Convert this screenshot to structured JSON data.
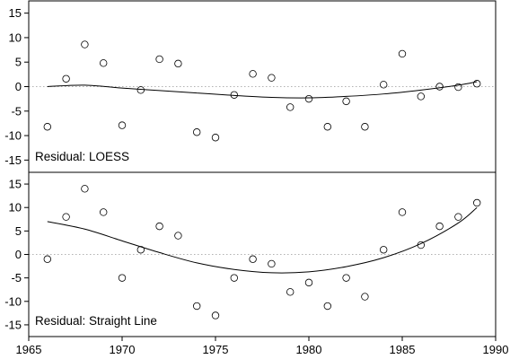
{
  "chart_data": [
    {
      "type": "scatter",
      "label": "Residual: LOESS",
      "xlim": [
        1965,
        1990
      ],
      "ylim": [
        -17.5,
        17.5
      ],
      "yticks": [
        -15,
        -10,
        -5,
        0,
        5,
        10,
        15
      ],
      "zero_line": true,
      "points": {
        "x": [
          1966,
          1967,
          1968,
          1969,
          1970,
          1971,
          1972,
          1973,
          1974,
          1975,
          1976,
          1977,
          1978,
          1979,
          1980,
          1981,
          1982,
          1983,
          1984,
          1985,
          1986,
          1987,
          1988,
          1989
        ],
        "y": [
          -8.2,
          1.6,
          8.6,
          4.8,
          -7.9,
          -0.7,
          5.6,
          4.7,
          -9.3,
          -10.4,
          -1.7,
          2.6,
          1.8,
          -4.2,
          -2.5,
          -8.2,
          -3.0,
          -8.2,
          0.4,
          6.7,
          -2.0,
          0.0,
          -0.1,
          0.6
        ]
      },
      "fit": {
        "x": [
          1966,
          1968,
          1970,
          1972,
          1974,
          1976,
          1978,
          1980,
          1982,
          1984,
          1986,
          1988,
          1989
        ],
        "y": [
          0.0,
          0.3,
          -0.3,
          -0.8,
          -1.3,
          -1.8,
          -2.2,
          -2.3,
          -2.0,
          -1.5,
          -0.7,
          0.3,
          1.0
        ]
      }
    },
    {
      "type": "scatter",
      "label": "Residual: Straight Line",
      "xlim": [
        1965,
        1990
      ],
      "ylim": [
        -17.5,
        17.5
      ],
      "yticks": [
        -15,
        -10,
        -5,
        0,
        5,
        10,
        15
      ],
      "xticks": [
        1965,
        1970,
        1975,
        1980,
        1985,
        1990
      ],
      "zero_line": true,
      "points": {
        "x": [
          1966,
          1967,
          1968,
          1969,
          1970,
          1971,
          1972,
          1973,
          1974,
          1975,
          1976,
          1977,
          1978,
          1979,
          1980,
          1981,
          1982,
          1983,
          1984,
          1985,
          1986,
          1987,
          1988,
          1989
        ],
        "y": [
          -1,
          8,
          14,
          9,
          -5,
          1,
          6,
          4,
          -11,
          -13,
          -5,
          -1,
          -2,
          -8,
          -6,
          -11,
          -5,
          -9,
          1,
          9,
          2,
          6,
          8,
          11
        ]
      },
      "fit": {
        "x": [
          1966,
          1968,
          1970,
          1972,
          1974,
          1976,
          1978,
          1980,
          1982,
          1984,
          1986,
          1988,
          1989
        ],
        "y": [
          7.0,
          5.4,
          2.9,
          0.4,
          -1.8,
          -3.2,
          -3.9,
          -3.7,
          -2.6,
          -0.7,
          2.3,
          6.7,
          10.0
        ]
      }
    }
  ]
}
